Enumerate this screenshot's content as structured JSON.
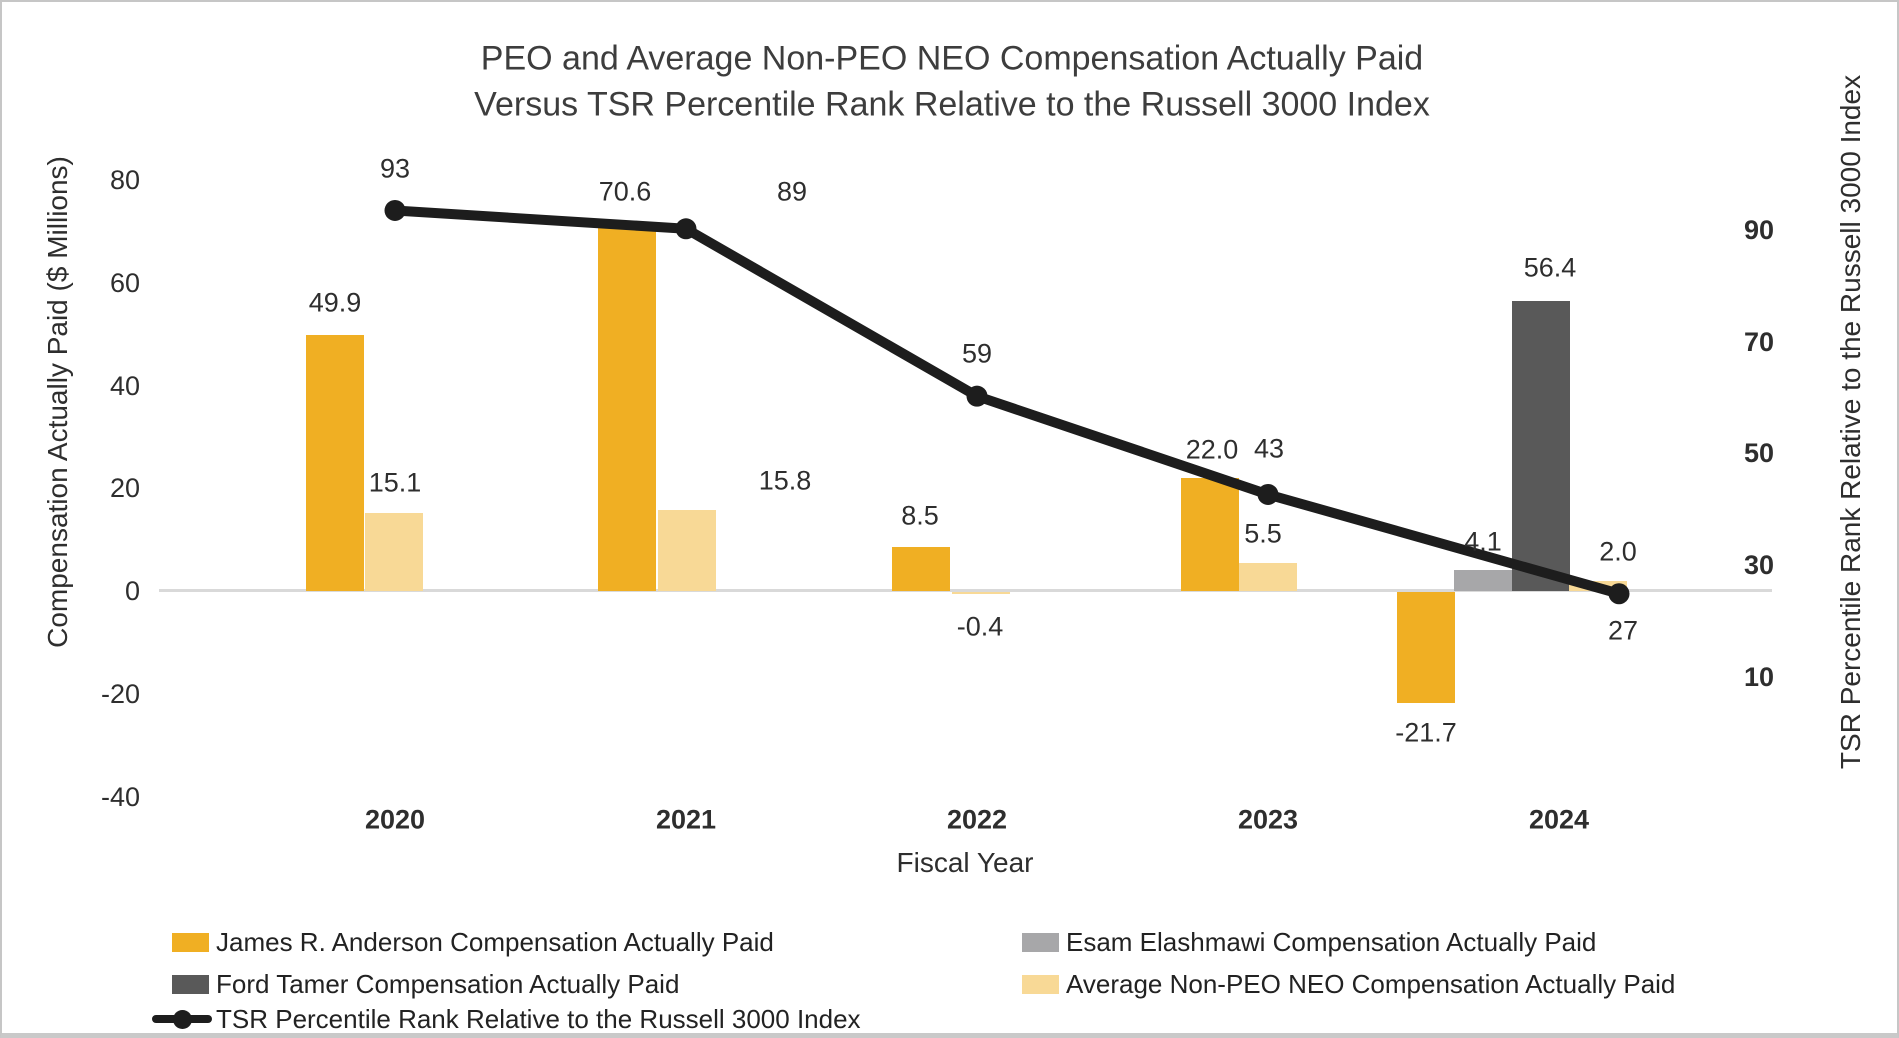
{
  "chart_data": {
    "type": "bar+line dual-axis combo",
    "title_line1": "PEO and Average Non-PEO NEO Compensation Actually Paid",
    "title_line2": "Versus TSR Percentile Rank Relative to the Russell 3000 Index",
    "xlabel": "Fiscal Year",
    "ylabel_left": "Compensation Actually Paid ($ Millions)",
    "ylabel_right": "TSR Percentile Rank Relative to the Russell 3000 Index",
    "categories": [
      "2020",
      "2021",
      "2022",
      "2023",
      "2024"
    ],
    "left_axis_ticks": [
      80,
      60,
      40,
      20,
      0,
      -20,
      -40
    ],
    "right_axis_ticks": [
      90,
      70,
      50,
      30,
      10
    ],
    "left_ylim": [
      -40,
      80
    ],
    "grid": "zero gridline only",
    "legend_position": "bottom",
    "series": [
      {
        "name": "James R. Anderson Compensation Actually Paid",
        "type": "bar",
        "color": "#F0AF23",
        "fmt": "1dp",
        "values": [
          49.9,
          70.6,
          8.5,
          22.0,
          -21.7
        ]
      },
      {
        "name": "Esam Elashmawi Compensation Actually Paid",
        "type": "bar",
        "color": "#A7A7A9",
        "fmt": "1dp",
        "values": [
          null,
          null,
          null,
          null,
          4.1
        ]
      },
      {
        "name": "Ford Tamer Compensation Actually Paid",
        "type": "bar",
        "color": "#595959",
        "fmt": "1dp",
        "values": [
          null,
          null,
          null,
          null,
          56.4
        ]
      },
      {
        "name": "Average Non-PEO NEO Compensation Actually Paid",
        "type": "bar",
        "color": "#F8D996",
        "fmt": "1dp",
        "values": [
          15.1,
          15.8,
          -0.4,
          5.5,
          2.0
        ]
      },
      {
        "name": "TSR Percentile Rank Relative to the Russell 3000 Index",
        "type": "line",
        "color": "#1D1D1D",
        "fmt": "int",
        "values": [
          93,
          89,
          59,
          43,
          27
        ]
      }
    ],
    "colors": {
      "gridline": "#D9D9D9",
      "text": "#2E2E2E"
    }
  }
}
